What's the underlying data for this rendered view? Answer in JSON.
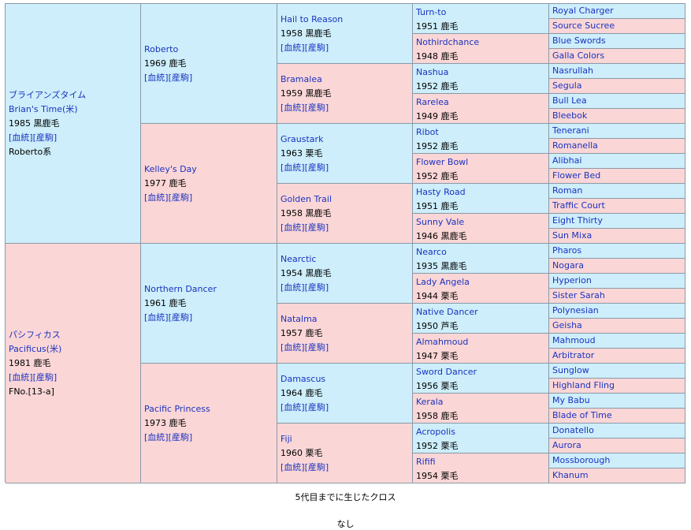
{
  "link_labels": {
    "pedigree": "[血統]",
    "foal": "[産駒]"
  },
  "horses": [
    {
      "name": "ブライアンズタイム",
      "name_en": "Brian's Time(米)",
      "year_coat": "1985 黒鹿毛",
      "line": "Roberto系",
      "sex": "m"
    },
    {
      "name": "パシフィカス",
      "name_en": "Pacificus(米)",
      "year_coat": "1981 鹿毛",
      "line": "FNo.[13-a]",
      "sex": "f"
    },
    {
      "name": "Roberto",
      "year_coat": "1969 鹿毛",
      "sex": "m"
    },
    {
      "name": "Kelley's Day",
      "year_coat": "1977 鹿毛",
      "sex": "f"
    },
    {
      "name": "Northern Dancer",
      "year_coat": "1961 鹿毛",
      "sex": "m"
    },
    {
      "name": "Pacific Princess",
      "year_coat": "1973 鹿毛",
      "sex": "f"
    },
    {
      "name": "Hail to Reason",
      "year_coat": "1958 黒鹿毛",
      "sex": "m"
    },
    {
      "name": "Bramalea",
      "year_coat": "1959 黒鹿毛",
      "sex": "f"
    },
    {
      "name": "Graustark",
      "year_coat": "1963 栗毛",
      "sex": "m"
    },
    {
      "name": "Golden Trail",
      "year_coat": "1958 黒鹿毛",
      "sex": "f"
    },
    {
      "name": "Nearctic",
      "year_coat": "1954 黒鹿毛",
      "sex": "m"
    },
    {
      "name": "Natalma",
      "year_coat": "1957 鹿毛",
      "sex": "f"
    },
    {
      "name": "Damascus",
      "year_coat": "1964 鹿毛",
      "sex": "m"
    },
    {
      "name": "Fiji",
      "year_coat": "1960 栗毛",
      "sex": "f"
    },
    {
      "name": "Turn-to",
      "year_coat": "1951 鹿毛",
      "sex": "m"
    },
    {
      "name": "Nothirdchance",
      "year_coat": "1948 鹿毛",
      "sex": "f"
    },
    {
      "name": "Nashua",
      "year_coat": "1952 鹿毛",
      "sex": "m"
    },
    {
      "name": "Rarelea",
      "year_coat": "1949 鹿毛",
      "sex": "f"
    },
    {
      "name": "Ribot",
      "year_coat": "1952 鹿毛",
      "sex": "m"
    },
    {
      "name": "Flower Bowl",
      "year_coat": "1952 鹿毛",
      "sex": "f"
    },
    {
      "name": "Hasty Road",
      "year_coat": "1951 鹿毛",
      "sex": "m"
    },
    {
      "name": "Sunny Vale",
      "year_coat": "1946 黒鹿毛",
      "sex": "f"
    },
    {
      "name": "Nearco",
      "year_coat": "1935 黒鹿毛",
      "sex": "m"
    },
    {
      "name": "Lady Angela",
      "year_coat": "1944 栗毛",
      "sex": "f"
    },
    {
      "name": "Native Dancer",
      "year_coat": "1950 芦毛",
      "sex": "m"
    },
    {
      "name": "Almahmoud",
      "year_coat": "1947 栗毛",
      "sex": "f"
    },
    {
      "name": "Sword Dancer",
      "year_coat": "1956 栗毛",
      "sex": "m"
    },
    {
      "name": "Kerala",
      "year_coat": "1958 鹿毛",
      "sex": "f"
    },
    {
      "name": "Acropolis",
      "year_coat": "1952 栗毛",
      "sex": "m"
    },
    {
      "name": "Rififi",
      "year_coat": "1954 栗毛",
      "sex": "f"
    },
    {
      "name": "Royal Charger",
      "sex": "m"
    },
    {
      "name": "Source Sucree",
      "sex": "f"
    },
    {
      "name": "Blue Swords",
      "sex": "m"
    },
    {
      "name": "Galla Colors",
      "sex": "f"
    },
    {
      "name": "Nasrullah",
      "sex": "m"
    },
    {
      "name": "Segula",
      "sex": "f"
    },
    {
      "name": "Bull Lea",
      "sex": "m"
    },
    {
      "name": "Bleebok",
      "sex": "f"
    },
    {
      "name": "Tenerani",
      "sex": "m"
    },
    {
      "name": "Romanella",
      "sex": "f"
    },
    {
      "name": "Alibhai",
      "sex": "m"
    },
    {
      "name": "Flower Bed",
      "sex": "f"
    },
    {
      "name": "Roman",
      "sex": "m"
    },
    {
      "name": "Traffic Court",
      "sex": "f"
    },
    {
      "name": "Eight Thirty",
      "sex": "m"
    },
    {
      "name": "Sun Mixa",
      "sex": "f"
    },
    {
      "name": "Pharos",
      "sex": "m"
    },
    {
      "name": "Nogara",
      "sex": "f"
    },
    {
      "name": "Hyperion",
      "sex": "m"
    },
    {
      "name": "Sister Sarah",
      "sex": "f"
    },
    {
      "name": "Polynesian",
      "sex": "m"
    },
    {
      "name": "Geisha",
      "sex": "f"
    },
    {
      "name": "Mahmoud",
      "sex": "m"
    },
    {
      "name": "Arbitrator",
      "sex": "f"
    },
    {
      "name": "Sunglow",
      "sex": "m"
    },
    {
      "name": "Highland Fling",
      "sex": "f"
    },
    {
      "name": "My Babu",
      "sex": "m"
    },
    {
      "name": "Blade of Time",
      "sex": "f"
    },
    {
      "name": "Donatello",
      "sex": "m"
    },
    {
      "name": "Aurora",
      "sex": "f"
    },
    {
      "name": "Mossborough",
      "sex": "m"
    },
    {
      "name": "Khanum",
      "sex": "f"
    }
  ],
  "footer": {
    "cross_title": "5代目までに生じたクロス",
    "cross_value": "なし"
  },
  "colors": {
    "male_bg": "#cdeefa",
    "female_bg": "#fbd6d6",
    "link": "#1a33c0",
    "border": "#8a9aa8"
  }
}
